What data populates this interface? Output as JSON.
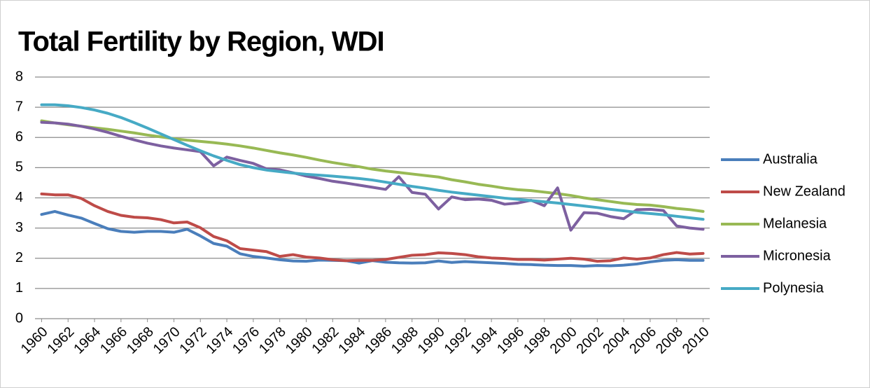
{
  "chart_data": {
    "type": "line",
    "title": "Total Fertility by Region, WDI",
    "x": [
      1960,
      1961,
      1962,
      1963,
      1964,
      1965,
      1966,
      1967,
      1968,
      1969,
      1970,
      1971,
      1972,
      1973,
      1974,
      1975,
      1976,
      1977,
      1978,
      1979,
      1980,
      1981,
      1982,
      1983,
      1984,
      1985,
      1986,
      1987,
      1988,
      1989,
      1990,
      1991,
      1992,
      1993,
      1994,
      1995,
      1996,
      1997,
      1998,
      1999,
      2000,
      2001,
      2002,
      2003,
      2004,
      2005,
      2006,
      2007,
      2008,
      2009,
      2010
    ],
    "xlim": [
      1959.5,
      2010.5
    ],
    "xticks": [
      1960,
      1962,
      1964,
      1966,
      1968,
      1970,
      1972,
      1974,
      1976,
      1978,
      1980,
      1982,
      1984,
      1986,
      1988,
      1990,
      1992,
      1994,
      1996,
      1998,
      2000,
      2002,
      2004,
      2006,
      2008,
      2010
    ],
    "ylim": [
      0,
      8
    ],
    "yticks": [
      0,
      1,
      2,
      3,
      4,
      5,
      6,
      7,
      8
    ],
    "grid": true,
    "legend": "right",
    "series": [
      {
        "name": "Australia",
        "color": "#4a7ebb",
        "values": [
          3.45,
          3.55,
          3.43,
          3.33,
          3.15,
          2.98,
          2.89,
          2.86,
          2.89,
          2.89,
          2.86,
          2.96,
          2.74,
          2.49,
          2.4,
          2.15,
          2.06,
          2.01,
          1.95,
          1.91,
          1.9,
          1.94,
          1.93,
          1.92,
          1.84,
          1.92,
          1.87,
          1.85,
          1.84,
          1.85,
          1.91,
          1.86,
          1.89,
          1.87,
          1.85,
          1.83,
          1.8,
          1.79,
          1.77,
          1.76,
          1.76,
          1.74,
          1.76,
          1.75,
          1.77,
          1.81,
          1.88,
          1.93,
          1.95,
          1.93,
          1.93
        ]
      },
      {
        "name": "New Zealand",
        "color": "#be4b48",
        "values": [
          4.13,
          4.1,
          4.1,
          3.98,
          3.74,
          3.55,
          3.42,
          3.36,
          3.34,
          3.28,
          3.17,
          3.2,
          3.01,
          2.72,
          2.58,
          2.32,
          2.27,
          2.22,
          2.06,
          2.12,
          2.04,
          2.01,
          1.95,
          1.92,
          1.93,
          1.93,
          1.96,
          2.03,
          2.1,
          2.12,
          2.18,
          2.16,
          2.12,
          2.05,
          2.01,
          1.99,
          1.96,
          1.96,
          1.94,
          1.97,
          2.0,
          1.97,
          1.9,
          1.92,
          2.01,
          1.97,
          2.01,
          2.12,
          2.19,
          2.14,
          2.16
        ]
      },
      {
        "name": "Melanesia",
        "color": "#98b954",
        "values": [
          6.55,
          6.48,
          6.42,
          6.37,
          6.32,
          6.27,
          6.21,
          6.15,
          6.08,
          6.02,
          5.96,
          5.91,
          5.87,
          5.83,
          5.78,
          5.72,
          5.65,
          5.57,
          5.49,
          5.42,
          5.34,
          5.25,
          5.17,
          5.1,
          5.03,
          4.95,
          4.89,
          4.84,
          4.79,
          4.74,
          4.69,
          4.6,
          4.53,
          4.45,
          4.39,
          4.32,
          4.27,
          4.24,
          4.19,
          4.14,
          4.08,
          4.0,
          3.94,
          3.88,
          3.82,
          3.78,
          3.76,
          3.71,
          3.65,
          3.61,
          3.55
        ]
      },
      {
        "name": "Micronesia",
        "color": "#7d60a0",
        "values": [
          6.5,
          6.48,
          6.44,
          6.37,
          6.28,
          6.17,
          6.04,
          5.92,
          5.81,
          5.72,
          5.65,
          5.59,
          5.53,
          5.06,
          5.35,
          5.24,
          5.14,
          4.96,
          4.93,
          4.83,
          4.72,
          4.64,
          4.55,
          4.49,
          4.42,
          4.35,
          4.28,
          4.7,
          4.18,
          4.12,
          3.63,
          4.03,
          3.94,
          3.96,
          3.92,
          3.79,
          3.83,
          3.92,
          3.74,
          4.33,
          2.93,
          3.51,
          3.49,
          3.38,
          3.31,
          3.61,
          3.62,
          3.58,
          3.07,
          3.0,
          2.96
        ]
      },
      {
        "name": "Polynesia",
        "color": "#46aac5",
        "values": [
          7.08,
          7.08,
          7.05,
          6.99,
          6.91,
          6.8,
          6.66,
          6.49,
          6.31,
          6.12,
          5.93,
          5.74,
          5.56,
          5.39,
          5.24,
          5.1,
          5.0,
          4.92,
          4.87,
          4.82,
          4.78,
          4.75,
          4.72,
          4.68,
          4.64,
          4.59,
          4.52,
          4.45,
          4.38,
          4.32,
          4.25,
          4.19,
          4.14,
          4.09,
          4.04,
          3.99,
          3.95,
          3.91,
          3.87,
          3.83,
          3.78,
          3.73,
          3.68,
          3.62,
          3.57,
          3.52,
          3.48,
          3.44,
          3.39,
          3.34,
          3.29
        ]
      }
    ]
  }
}
